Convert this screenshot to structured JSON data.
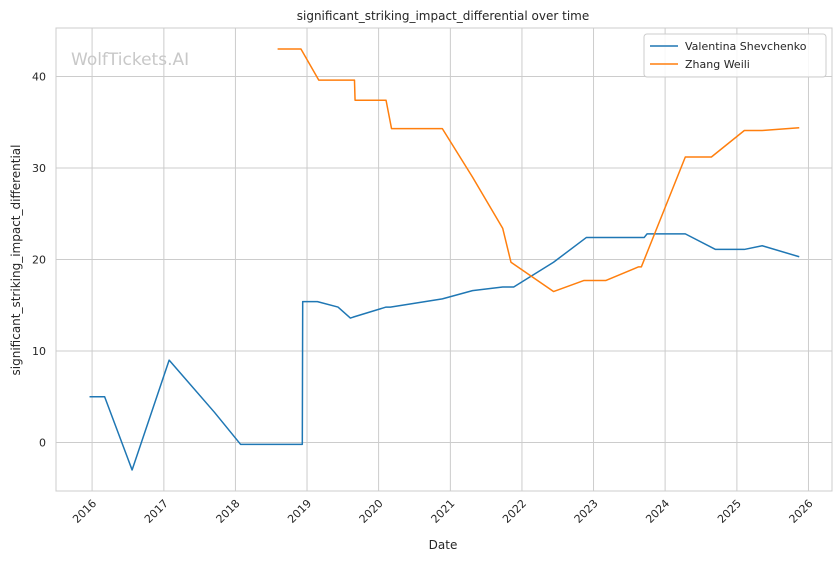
{
  "chart_data": {
    "type": "line",
    "title": "significant_striking_impact_differential over time",
    "xlabel": "Date",
    "ylabel": "significant_striking_impact_differential",
    "xlim": [
      "2015-07-01",
      "2026-05-01"
    ],
    "ylim": [
      -5.3,
      45.3
    ],
    "x_ticks": [
      "2016",
      "2017",
      "2018",
      "2019",
      "2020",
      "2021",
      "2022",
      "2023",
      "2024",
      "2025",
      "2026"
    ],
    "y_ticks": [
      0,
      10,
      20,
      30,
      40
    ],
    "grid": true,
    "legend_position": "top-right",
    "watermark": "WolfTickets.AI",
    "series": [
      {
        "name": "Valentina Shevchenko",
        "color": "#1f77b4",
        "points": [
          [
            "2015-12-19",
            5.0
          ],
          [
            "2016-03-05",
            5.0
          ],
          [
            "2016-07-23",
            -3.0
          ],
          [
            "2017-01-28",
            9.0
          ],
          [
            "2017-09-16",
            3.3
          ],
          [
            "2018-01-27",
            -0.2
          ],
          [
            "2018-12-08",
            -0.2
          ],
          [
            "2018-12-10",
            15.4
          ],
          [
            "2019-02-23",
            15.4
          ],
          [
            "2019-06-08",
            14.8
          ],
          [
            "2019-08-10",
            13.6
          ],
          [
            "2019-08-24",
            13.7
          ],
          [
            "2020-02-08",
            14.8
          ],
          [
            "2020-03-01",
            14.8
          ],
          [
            "2020-11-21",
            15.7
          ],
          [
            "2021-04-24",
            16.6
          ],
          [
            "2021-09-25",
            17.0
          ],
          [
            "2021-11-20",
            17.0
          ],
          [
            "2022-06-11",
            19.7
          ],
          [
            "2022-11-25",
            22.4
          ],
          [
            "2023-03-04",
            22.4
          ],
          [
            "2023-09-16",
            22.4
          ],
          [
            "2023-10-01",
            22.8
          ],
          [
            "2024-04-13",
            22.8
          ],
          [
            "2024-09-14",
            21.1
          ],
          [
            "2025-02-08",
            21.1
          ],
          [
            "2025-05-10",
            21.5
          ],
          [
            "2025-11-15",
            20.3
          ]
        ]
      },
      {
        "name": "Zhang Weili",
        "color": "#ff7f0e",
        "points": [
          [
            "2018-08-04",
            43.0
          ],
          [
            "2018-12-01",
            43.0
          ],
          [
            "2019-03-02",
            39.6
          ],
          [
            "2019-08-31",
            39.6
          ],
          [
            "2019-09-03",
            37.4
          ],
          [
            "2020-02-08",
            37.4
          ],
          [
            "2020-03-07",
            34.3
          ],
          [
            "2020-11-21",
            34.3
          ],
          [
            "2021-04-24",
            29.0
          ],
          [
            "2021-09-25",
            23.4
          ],
          [
            "2021-11-06",
            19.7
          ],
          [
            "2022-06-11",
            16.5
          ],
          [
            "2022-11-12",
            17.7
          ],
          [
            "2023-03-04",
            17.7
          ],
          [
            "2023-08-19",
            19.2
          ],
          [
            "2023-09-02",
            19.2
          ],
          [
            "2024-04-13",
            31.2
          ],
          [
            "2024-08-24",
            31.2
          ],
          [
            "2025-02-08",
            34.1
          ],
          [
            "2025-05-10",
            34.1
          ],
          [
            "2025-11-15",
            34.4
          ]
        ]
      }
    ]
  }
}
